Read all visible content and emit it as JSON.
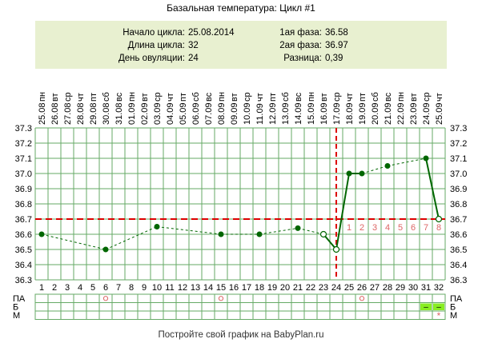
{
  "title": "Базальная температура: Цикл #1",
  "info": {
    "cycle_start_label": "Начало цикла:",
    "cycle_start_value": "25.08.2014",
    "cycle_length_label": "Длина цикла:",
    "cycle_length_value": "32",
    "ovulation_day_label": "День овуляции:",
    "ovulation_day_value": "24",
    "phase1_label": "1ая фаза:",
    "phase1_value": "36.58",
    "phase2_label": "2ая фаза:",
    "phase2_value": "36.97",
    "difference_label": "Разница:",
    "difference_value": "0,39"
  },
  "footer": "Постройте свой график на BabyPlan.ru",
  "colors": {
    "grid": "#66aa66",
    "line": "#006600",
    "coverline": "#dd0000",
    "marker_ring": "#dd6666",
    "count_label": "#dd6666",
    "legend_fill": "#88ee22"
  },
  "chart_data": {
    "type": "line",
    "title": "",
    "xlabel": "",
    "ylabel": "",
    "ylim": [
      36.3,
      37.3
    ],
    "y_ticks": [
      "36.3",
      "36.4",
      "36.5",
      "36.6",
      "36.7",
      "36.8",
      "36.9",
      "37.0",
      "37.1",
      "37.2",
      "37.3"
    ],
    "days": [
      1,
      2,
      3,
      4,
      5,
      6,
      7,
      8,
      9,
      10,
      11,
      12,
      13,
      14,
      15,
      16,
      17,
      18,
      19,
      20,
      21,
      22,
      23,
      24,
      25,
      26,
      27,
      28,
      29,
      30,
      31,
      32
    ],
    "weekdays": [
      "пн",
      "вт",
      "ср",
      "чт",
      "пт",
      "сб",
      "вс",
      "пн",
      "вт",
      "ср",
      "чт",
      "пт",
      "сб",
      "вс",
      "пн",
      "вт",
      "ср",
      "чт",
      "пт",
      "сб",
      "вс",
      "пн",
      "вт",
      "ср",
      "чт",
      "пт",
      "сб",
      "вс",
      "пн",
      "вт",
      "ср",
      "чт"
    ],
    "dates": [
      "25.08",
      "26.08",
      "27.08",
      "28.08",
      "29.08",
      "30.08",
      "31.08",
      "01.09",
      "02.09",
      "03.09",
      "04.09",
      "05.09",
      "06.09",
      "07.09",
      "08.09",
      "09.09",
      "10.09",
      "11.09",
      "12.09",
      "13.09",
      "14.09",
      "15.09",
      "16.09",
      "17.09",
      "18.09",
      "19.09",
      "20.09",
      "21.09",
      "22.09",
      "23.09",
      "24.09",
      "25.09"
    ],
    "coverline": 36.7,
    "ovulation_day": 24,
    "points": [
      {
        "day": 1,
        "temp": 36.6,
        "style": "dot"
      },
      {
        "day": 6,
        "temp": 36.5,
        "style": "dot"
      },
      {
        "day": 10,
        "temp": 36.65,
        "style": "dot"
      },
      {
        "day": 15,
        "temp": 36.6,
        "style": "dot"
      },
      {
        "day": 18,
        "temp": 36.6,
        "style": "dot"
      },
      {
        "day": 21,
        "temp": 36.64,
        "style": "dot"
      },
      {
        "day": 23,
        "temp": 36.6,
        "style": "ring"
      },
      {
        "day": 24,
        "temp": 36.5,
        "style": "ring"
      },
      {
        "day": 25,
        "temp": 37.0,
        "style": "dot"
      },
      {
        "day": 26,
        "temp": 37.0,
        "style": "dot"
      },
      {
        "day": 28,
        "temp": 37.05,
        "style": "dot"
      },
      {
        "day": 31,
        "temp": 37.1,
        "style": "dot"
      },
      {
        "day": 32,
        "temp": 36.7,
        "style": "ring"
      }
    ],
    "solid_segments": [
      [
        23,
        24
      ],
      [
        24,
        25
      ],
      [
        25,
        26
      ],
      [
        31,
        32
      ]
    ],
    "post_ovulation_counts": [
      "1",
      "2",
      "3",
      "4",
      "5",
      "6",
      "7",
      "8"
    ],
    "legend": {
      "rows": [
        "ПА",
        "Б",
        "М"
      ],
      "pa_circles": [
        6,
        15,
        26
      ],
      "b_filled": [
        31,
        32
      ],
      "b_mark": "–",
      "m_star": [
        32
      ],
      "m_mark": "*"
    }
  }
}
